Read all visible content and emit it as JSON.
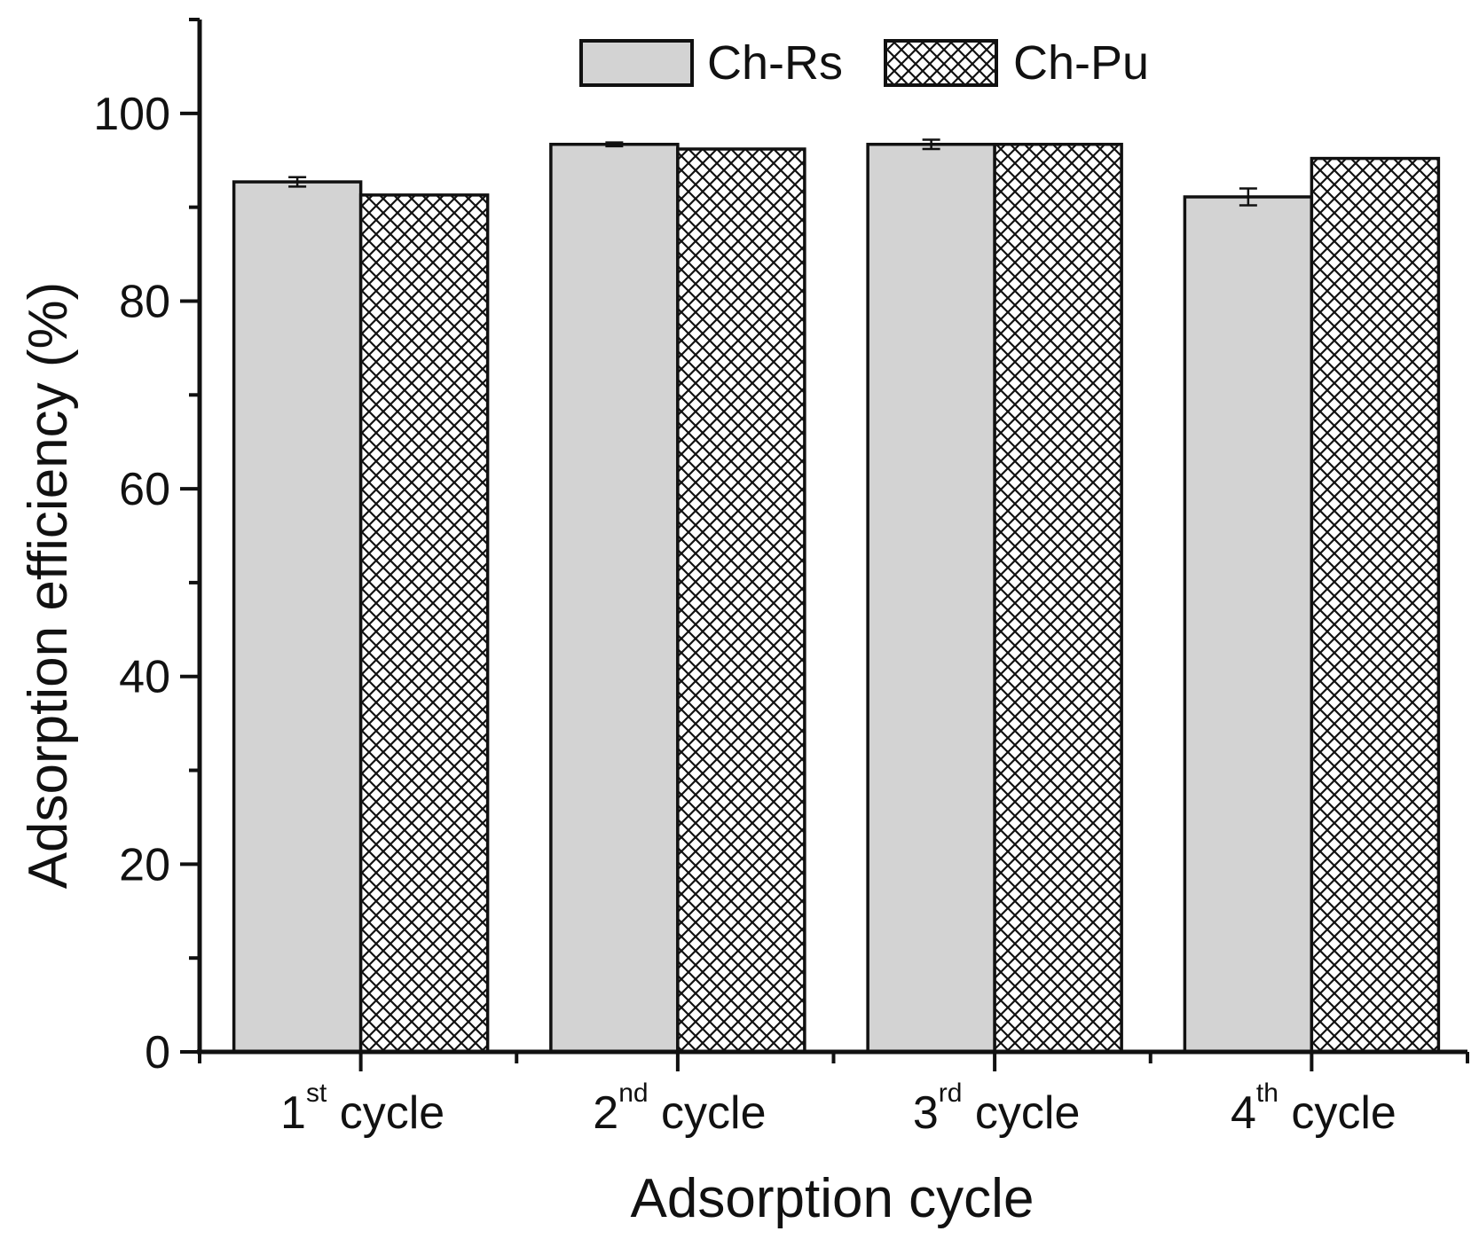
{
  "chart_data": {
    "type": "bar",
    "xlabel": "Adsorption cycle",
    "ylabel": "Adsorption efficiency (%)",
    "ylim": [
      0,
      110
    ],
    "yticks": [
      0,
      20,
      40,
      60,
      80,
      100
    ],
    "categories": [
      {
        "num": "1",
        "sup": "st",
        "word": " cycle"
      },
      {
        "num": "2",
        "sup": "nd",
        "word": " cycle"
      },
      {
        "num": "3",
        "sup": "rd",
        "word": " cycle"
      },
      {
        "num": "4",
        "sup": "th",
        "word": " cycle"
      }
    ],
    "series": [
      {
        "name": "Ch-Rs",
        "values": [
          92.7,
          96.7,
          96.7,
          91.1
        ],
        "errors": [
          0.5,
          0.2,
          0.5,
          0.9
        ],
        "fill": "#d3d3d3"
      },
      {
        "name": "Ch-Pu",
        "values": [
          91.3,
          96.2,
          96.7,
          95.2
        ],
        "errors": [
          0,
          0,
          0,
          0
        ],
        "fill": "hatch"
      }
    ],
    "legend": {
      "position": "top-center"
    },
    "grid": false
  }
}
